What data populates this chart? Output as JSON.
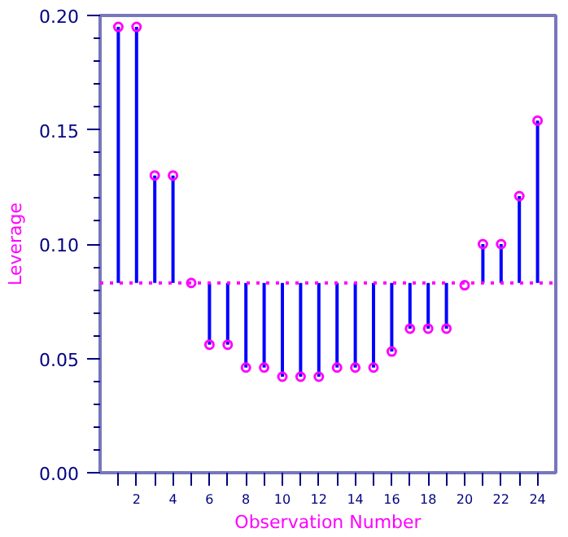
{
  "chart_data": {
    "type": "scatter",
    "xlabel": "Observation Number",
    "ylabel": "Leverage",
    "x": [
      1,
      2,
      3,
      4,
      5,
      6,
      7,
      8,
      9,
      10,
      11,
      12,
      13,
      14,
      15,
      16,
      17,
      18,
      19,
      20,
      21,
      22,
      23,
      24
    ],
    "series": [
      {
        "color": "#ff00ff",
        "values": [
          0.195,
          0.195,
          0.13,
          0.13,
          0.083,
          0.056,
          0.056,
          0.046,
          0.046,
          0.042,
          0.042,
          0.042,
          0.046,
          0.046,
          0.046,
          0.053,
          0.063,
          0.063,
          0.063,
          0.082,
          0.1,
          0.1,
          0.121,
          0.154
        ],
        "errors": [
          [
            0.083,
            0.195
          ],
          [
            0.083,
            0.195
          ],
          [
            0.083,
            0.13
          ],
          [
            0.083,
            0.13
          ],
          null,
          [
            0.056,
            0.083
          ],
          [
            0.056,
            0.083
          ],
          [
            0.046,
            0.083
          ],
          [
            0.046,
            0.083
          ],
          [
            0.042,
            0.083
          ],
          [
            0.042,
            0.083
          ],
          [
            0.042,
            0.083
          ],
          [
            0.046,
            0.083
          ],
          [
            0.046,
            0.083
          ],
          [
            0.046,
            0.083
          ],
          [
            0.053,
            0.083
          ],
          [
            0.063,
            0.083
          ],
          [
            0.063,
            0.083
          ],
          [
            0.063,
            0.083
          ],
          null,
          [
            0.083,
            0.1
          ],
          [
            0.083,
            0.1
          ],
          [
            0.083,
            0.121
          ],
          [
            0.083,
            0.154
          ]
        ]
      }
    ],
    "ref_lines": [
      {
        "axis": "y",
        "value": 0.083,
        "color": "#ff00ff",
        "line_style": "dotted"
      }
    ],
    "marker": "circle",
    "xlim": [
      0,
      25
    ],
    "ylim": [
      0,
      0.2
    ],
    "xticks": [
      {
        "value": 1,
        "label": null
      },
      2,
      {
        "value": 3,
        "label": null
      },
      4,
      {
        "value": 5,
        "label": null
      },
      6,
      {
        "value": 7,
        "label": null
      },
      8,
      {
        "value": 9,
        "label": null
      },
      10,
      {
        "value": 11,
        "label": null
      },
      12,
      {
        "value": 13,
        "label": null
      },
      14,
      {
        "value": 15,
        "label": null
      },
      16,
      {
        "value": 17,
        "label": null
      },
      18,
      {
        "value": 19,
        "label": null
      },
      20,
      {
        "value": 21,
        "label": null
      },
      22,
      {
        "value": 23,
        "label": null
      },
      24
    ],
    "yticks": [
      {
        "value": 0,
        "label": "0.00"
      },
      {
        "value": 0.05,
        "label": "0.05"
      },
      {
        "value": 0.1,
        "label": "0.10"
      },
      {
        "value": 0.15,
        "label": "0.15"
      },
      {
        "value": 0.2,
        "label": "0.20"
      }
    ],
    "grid": false
  }
}
